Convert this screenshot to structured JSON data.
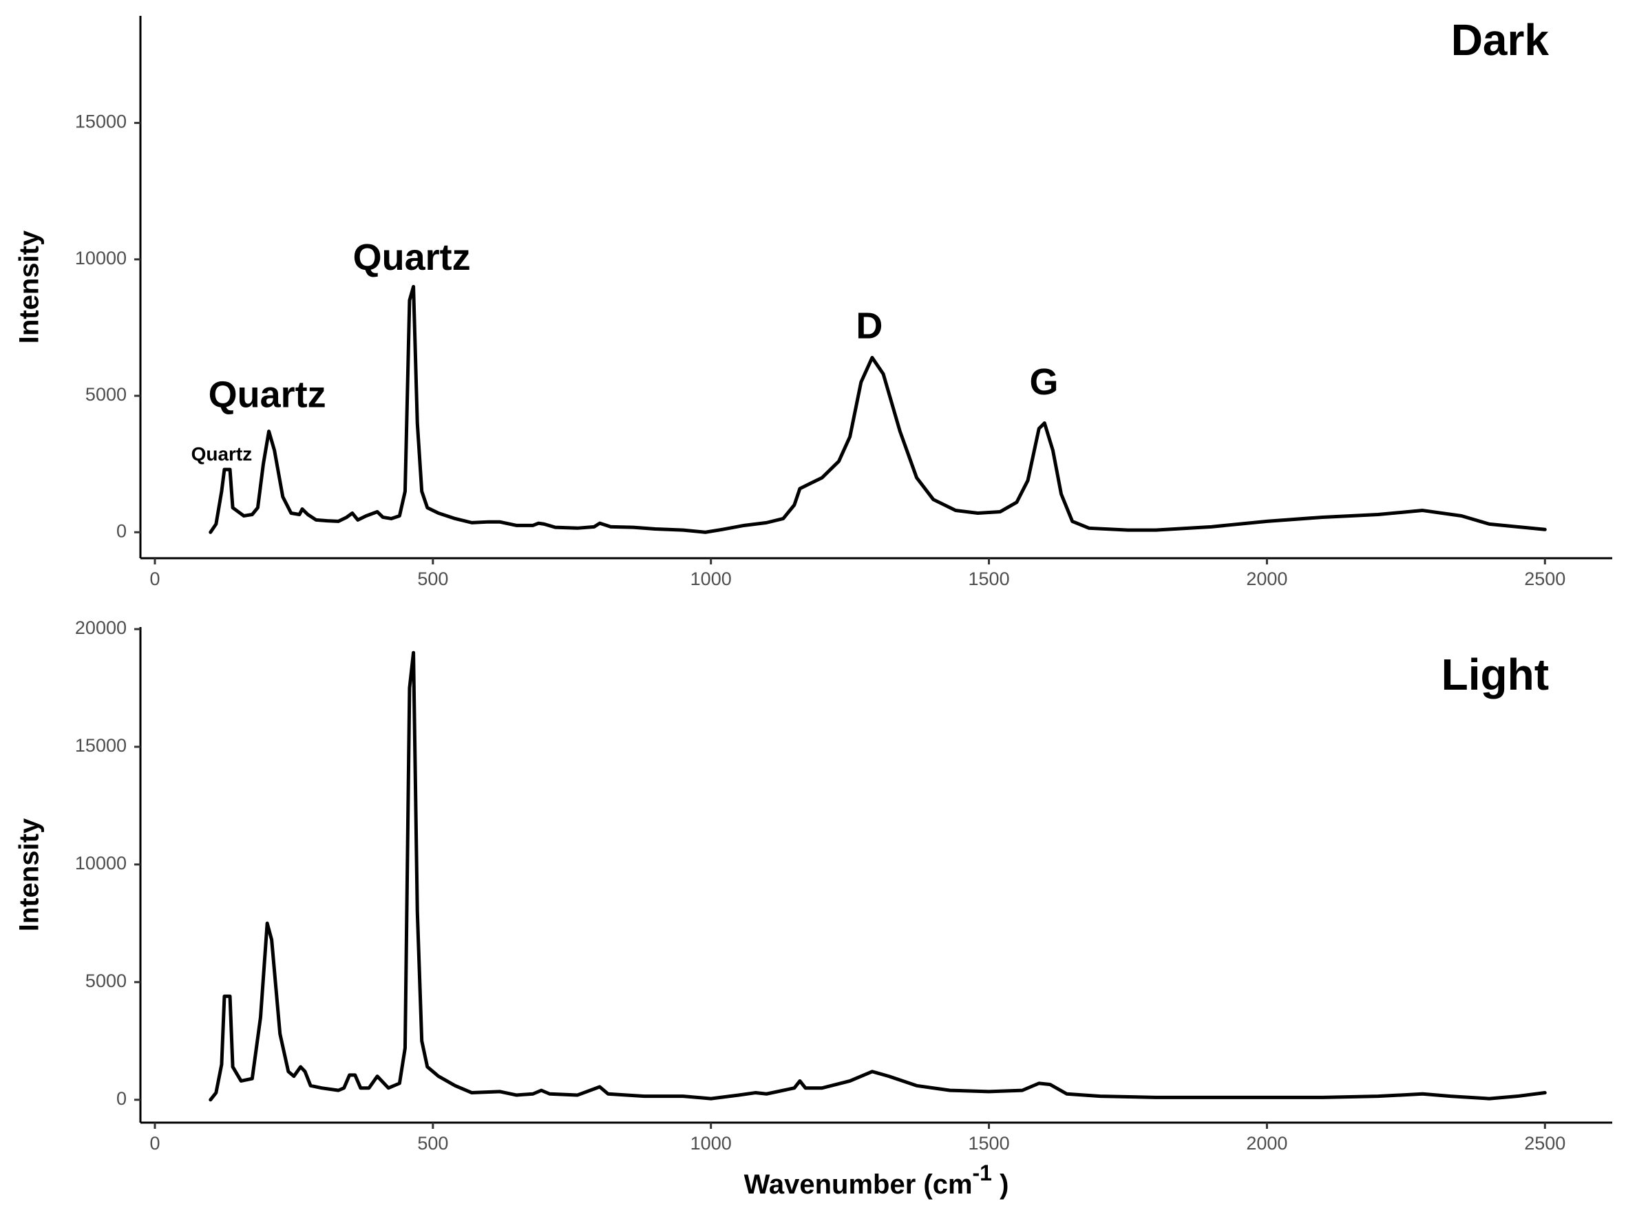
{
  "chart_data": [
    {
      "type": "line",
      "label": "Dark",
      "ylabel": "Intensity",
      "x": [
        100,
        110,
        120,
        125,
        135,
        140,
        160,
        175,
        185,
        195,
        205,
        215,
        230,
        245,
        260,
        265,
        275,
        290,
        310,
        330,
        345,
        355,
        365,
        380,
        400,
        410,
        425,
        440,
        450,
        458,
        465,
        472,
        480,
        490,
        510,
        540,
        570,
        600,
        620,
        650,
        680,
        690,
        700,
        720,
        760,
        790,
        800,
        820,
        860,
        900,
        950,
        990,
        1020,
        1060,
        1100,
        1130,
        1150,
        1160,
        1180,
        1200,
        1230,
        1250,
        1270,
        1290,
        1310,
        1340,
        1370,
        1400,
        1440,
        1480,
        1520,
        1550,
        1570,
        1590,
        1600,
        1615,
        1630,
        1650,
        1680,
        1750,
        1800,
        1900,
        2000,
        2100,
        2200,
        2280,
        2350,
        2400,
        2500
      ],
      "series": [
        {
          "color": "#000000",
          "values": [
            0,
            300,
            1500,
            2300,
            2300,
            900,
            600,
            650,
            900,
            2500,
            3700,
            3000,
            1300,
            700,
            650,
            850,
            650,
            450,
            420,
            400,
            550,
            700,
            450,
            600,
            750,
            550,
            500,
            600,
            1500,
            8500,
            9000,
            4000,
            1500,
            900,
            700,
            500,
            350,
            380,
            380,
            250,
            250,
            330,
            300,
            180,
            150,
            200,
            330,
            200,
            180,
            120,
            80,
            0,
            100,
            250,
            350,
            500,
            1000,
            1600,
            1800,
            2000,
            2600,
            3500,
            5500,
            6400,
            5800,
            3700,
            2000,
            1200,
            800,
            700,
            750,
            1100,
            1900,
            3800,
            4000,
            3000,
            1400,
            400,
            150,
            80,
            80,
            200,
            400,
            550,
            650,
            800,
            600,
            300,
            100
          ]
        }
      ],
      "annotations": [
        {
          "text": "Quartz",
          "x": 120,
          "y": 2818
        },
        {
          "text": "Quartz",
          "x": 202,
          "y": 4950
        },
        {
          "text": "Quartz",
          "x": 462,
          "y": 9977
        },
        {
          "text": "D",
          "x": 1285,
          "y": 7464
        },
        {
          "text": "G",
          "x": 1599,
          "y": 5408
        }
      ],
      "xlim": [
        -26,
        2621
      ],
      "xticks": [
        0,
        500,
        1000,
        1500,
        2000,
        2500
      ],
      "ylim": [
        -952,
        18925
      ],
      "yticks": [
        0,
        5000,
        10000,
        15000
      ]
    },
    {
      "type": "line",
      "label": "Light",
      "ylabel": "Intensity",
      "xlabel": {
        "text": "Wavenumber (cm",
        "superscript": "-1",
        "suffix": " )"
      },
      "x": [
        100,
        110,
        120,
        125,
        135,
        140,
        155,
        175,
        190,
        202,
        210,
        225,
        240,
        250,
        262,
        270,
        280,
        300,
        330,
        340,
        350,
        360,
        370,
        385,
        400,
        420,
        440,
        450,
        458,
        465,
        472,
        480,
        490,
        510,
        540,
        570,
        620,
        650,
        680,
        695,
        710,
        760,
        800,
        815,
        880,
        950,
        1000,
        1050,
        1080,
        1100,
        1150,
        1160,
        1170,
        1200,
        1250,
        1290,
        1320,
        1370,
        1430,
        1500,
        1560,
        1590,
        1610,
        1640,
        1700,
        1800,
        1900,
        2000,
        2100,
        2200,
        2280,
        2330,
        2400,
        2450,
        2500
      ],
      "series": [
        {
          "color": "#000000",
          "values": [
            0,
            300,
            1500,
            4400,
            4400,
            1400,
            800,
            900,
            3500,
            7500,
            6800,
            2800,
            1200,
            1000,
            1400,
            1200,
            600,
            500,
            400,
            500,
            1050,
            1050,
            500,
            500,
            1000,
            500,
            700,
            2200,
            17500,
            19000,
            8000,
            2500,
            1400,
            1000,
            600,
            300,
            350,
            200,
            250,
            400,
            250,
            200,
            550,
            250,
            150,
            150,
            50,
            200,
            300,
            250,
            500,
            800,
            500,
            500,
            800,
            1200,
            1000,
            600,
            400,
            350,
            400,
            700,
            650,
            250,
            150,
            100,
            100,
            100,
            100,
            150,
            250,
            150,
            50,
            150,
            300
          ]
        }
      ],
      "xlim": [
        -26,
        2621
      ],
      "xticks": [
        0,
        500,
        1000,
        1500,
        2000,
        2500
      ],
      "ylim": [
        -971,
        20088
      ],
      "yticks": [
        0,
        5000,
        10000,
        15000,
        20000
      ]
    }
  ]
}
